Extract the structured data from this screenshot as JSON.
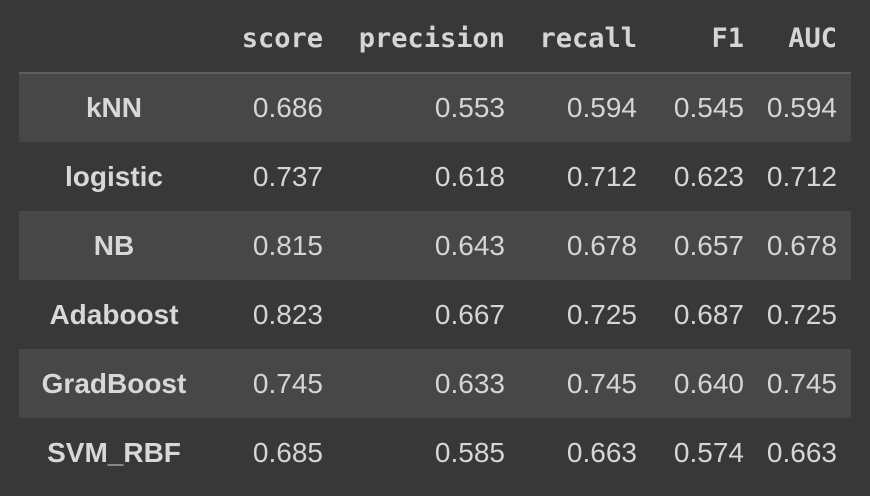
{
  "table": {
    "columns": [
      "",
      "score",
      "precision",
      "recall",
      "F1",
      "AUC"
    ],
    "rows": [
      {
        "label": "kNN",
        "values": [
          "0.686",
          "0.553",
          "0.594",
          "0.545",
          "0.594"
        ]
      },
      {
        "label": "logistic",
        "values": [
          "0.737",
          "0.618",
          "0.712",
          "0.623",
          "0.712"
        ]
      },
      {
        "label": "NB",
        "values": [
          "0.815",
          "0.643",
          "0.678",
          "0.657",
          "0.678"
        ]
      },
      {
        "label": "Adaboost",
        "values": [
          "0.823",
          "0.667",
          "0.725",
          "0.687",
          "0.725"
        ]
      },
      {
        "label": "GradBoost",
        "values": [
          "0.745",
          "0.633",
          "0.745",
          "0.640",
          "0.745"
        ]
      },
      {
        "label": "SVM_RBF",
        "values": [
          "0.685",
          "0.585",
          "0.663",
          "0.574",
          "0.663"
        ]
      }
    ]
  }
}
